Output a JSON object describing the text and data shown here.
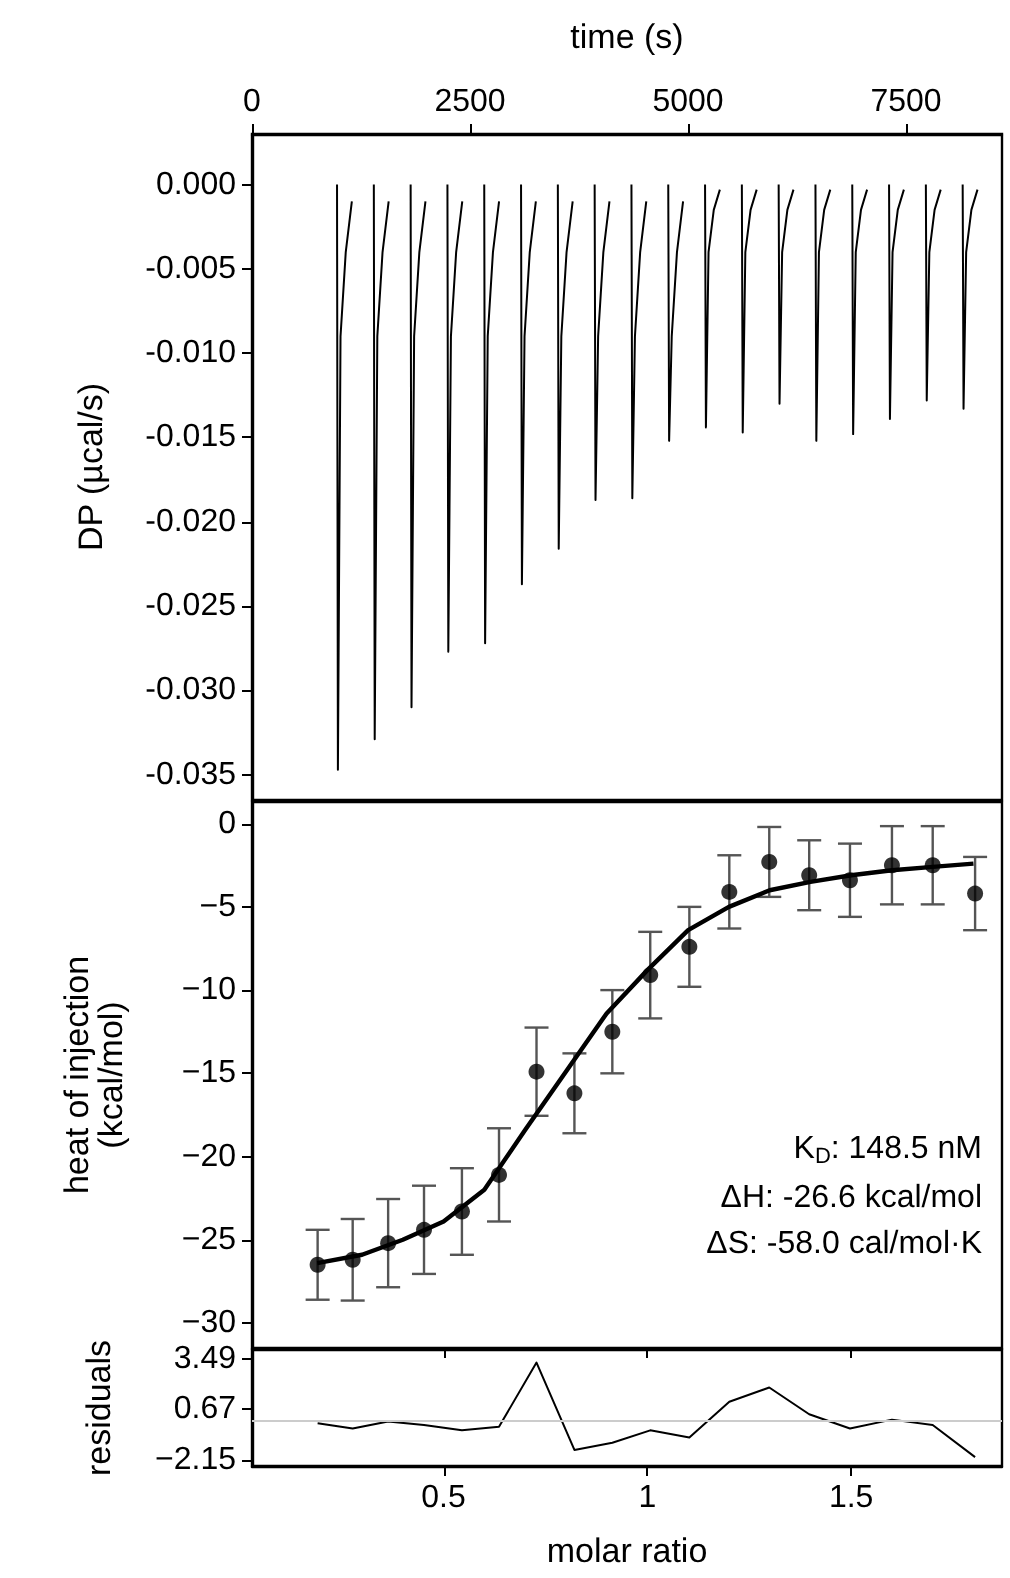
{
  "chart_data": [
    {
      "type": "line",
      "xlabel": "time (s)",
      "ylabel": "DP (µcal/s)",
      "xlim": [
        0,
        8600
      ],
      "xticks": [
        0,
        2500,
        5000,
        7500
      ],
      "ylim": [
        -0.0365,
        0.003
      ],
      "yticks": [
        {
          "value": 0,
          "label": "0.000"
        },
        {
          "value": -0.005,
          "label": "-0.005"
        },
        {
          "value": -0.01,
          "label": "-0.010"
        },
        {
          "value": -0.015,
          "label": "-0.015"
        },
        {
          "value": -0.02,
          "label": "-0.020"
        },
        {
          "value": -0.025,
          "label": "-0.025"
        },
        {
          "value": -0.03,
          "label": "-0.030"
        },
        {
          "value": -0.035,
          "label": "-0.035"
        }
      ],
      "series": [
        {
          "color": "#000000",
          "marker": "none",
          "x": [
            975,
            985,
            1015,
            1075,
            1145,
            1146,
            1397,
            1407,
            1437,
            1497,
            1567,
            1568,
            1819,
            1829,
            1859,
            1919,
            1989,
            1990,
            2241,
            2251,
            2281,
            2341,
            2411,
            2412,
            2663,
            2673,
            2703,
            2763,
            2833,
            2834,
            3085,
            3095,
            3125,
            3185,
            3255,
            3256,
            3507,
            3517,
            3547,
            3607,
            3677,
            3678,
            3929,
            3939,
            3969,
            4029,
            4099,
            4100,
            4351,
            4361,
            4391,
            4451,
            4521,
            4522,
            4773,
            4783,
            4813,
            4873,
            4943,
            4944,
            5195,
            5205,
            5235,
            5295,
            5365,
            5366,
            5617,
            5627,
            5657,
            5717,
            5787,
            5788,
            6039,
            6049,
            6079,
            6139,
            6209,
            6210,
            6461,
            6471,
            6501,
            6561,
            6631,
            6632,
            6883,
            6893,
            6923,
            6983,
            7053,
            7054,
            7305,
            7315,
            7345,
            7405,
            7475,
            7476,
            7727,
            7737,
            7767,
            7827,
            7897,
            7898,
            8149,
            8159,
            8189,
            8249,
            8319
          ],
          "values": [
            0,
            -0.0347,
            -0.009,
            -0.004,
            -0.001,
            null,
            0,
            -0.0329,
            -0.009,
            -0.004,
            -0.001,
            null,
            0,
            -0.031,
            -0.009,
            -0.004,
            -0.001,
            null,
            0,
            -0.0277,
            -0.009,
            -0.004,
            -0.001,
            null,
            0,
            -0.0272,
            -0.009,
            -0.004,
            -0.001,
            null,
            0,
            -0.0237,
            -0.009,
            -0.004,
            -0.001,
            null,
            0,
            -0.0216,
            -0.009,
            -0.004,
            -0.001,
            null,
            0,
            -0.0187,
            -0.009,
            -0.004,
            -0.001,
            null,
            0,
            -0.0186,
            -0.009,
            -0.004,
            -0.001,
            null,
            0,
            -0.0152,
            -0.009,
            -0.004,
            -0.001,
            null,
            0,
            -0.0144,
            -0.004,
            -0.0015,
            -0.0003,
            null,
            0,
            -0.0147,
            -0.004,
            -0.0015,
            -0.0003,
            null,
            0,
            -0.013,
            -0.004,
            -0.0015,
            -0.0003,
            null,
            0,
            -0.0152,
            -0.004,
            -0.0015,
            -0.0003,
            null,
            0,
            -0.0148,
            -0.004,
            -0.0015,
            -0.0003,
            null,
            0,
            -0.0139,
            -0.004,
            -0.0015,
            -0.0003,
            null,
            0,
            -0.0128,
            -0.004,
            -0.0015,
            -0.0003,
            null,
            0,
            -0.0133,
            -0.004,
            -0.0015,
            -0.0003
          ]
        }
      ]
    },
    {
      "type": "scatter",
      "ylabel": "heat of injection\n(kcal/mol)",
      "xlim": [
        0.03,
        1.87
      ],
      "xticks": [
        0.5,
        1.0,
        1.5
      ],
      "tick_labels": "y",
      "ylim": [
        -31.5,
        1.3
      ],
      "yticks": [
        0,
        {
          "value": -5,
          "label": "−5"
        },
        {
          "value": -10,
          "label": "−10"
        },
        {
          "value": -15,
          "label": "−15"
        },
        {
          "value": -20,
          "label": "−20"
        },
        {
          "value": -25,
          "label": "−25"
        },
        {
          "value": -30,
          "label": "−30"
        }
      ],
      "annotations": [
        "K$_{D}$: 148.5 nM",
        "ΔH: -26.6 kcal/mol",
        "ΔS: -58.0 cal/mol·K"
      ],
      "series": [
        {
          "type": "scatter",
          "color": "#000000",
          "marker": "circle",
          "x": [
            0.191,
            0.277,
            0.364,
            0.452,
            0.545,
            0.636,
            0.728,
            0.821,
            0.914,
            1.007,
            1.103,
            1.201,
            1.299,
            1.397,
            1.497,
            1.6,
            1.7,
            1.804
          ],
          "values": [
            -26.5,
            -26.2,
            -25.2,
            -24.4,
            -23.3,
            -21.1,
            -14.9,
            -16.2,
            -12.5,
            -9.1,
            -7.4,
            -4.1,
            -2.3,
            -3.1,
            -3.4,
            -2.5,
            -2.5,
            -4.2
          ],
          "errors": [
            2.1,
            2.45,
            2.65,
            2.65,
            2.6,
            2.8,
            2.65,
            2.4,
            2.5,
            2.6,
            2.4,
            2.2,
            2.1,
            2.1,
            2.2,
            2.35,
            2.35,
            2.2
          ]
        },
        {
          "type": "line",
          "color": "#000000",
          "marker": "none",
          "x": [
            0.19,
            0.3,
            0.4,
            0.5,
            0.6,
            0.7,
            0.8,
            0.9,
            1.0,
            1.1,
            1.2,
            1.3,
            1.4,
            1.5,
            1.6,
            1.7,
            1.8
          ],
          "values": [
            -26.4,
            -25.9,
            -25.0,
            -23.9,
            -22.0,
            -18.4,
            -14.9,
            -11.4,
            -8.8,
            -6.4,
            -5.0,
            -4.0,
            -3.5,
            -3.1,
            -2.8,
            -2.6,
            -2.4
          ]
        }
      ]
    },
    {
      "type": "line",
      "xlabel": "molar ratio",
      "ylabel": "residuals",
      "xlim": [
        0.03,
        1.87
      ],
      "xticks": [
        0.5,
        1.0,
        1.5
      ],
      "ylim": [
        -2.5,
        4.0
      ],
      "yticks": [
        {
          "value": -2.15,
          "label": "−2.15"
        },
        0.67,
        3.49
      ],
      "ref_lines": [
        {
          "axis": "y",
          "value": 0,
          "color": "#cccccc"
        }
      ],
      "series": [
        {
          "color": "#000000",
          "marker": "none",
          "x": [
            0.191,
            0.277,
            0.364,
            0.452,
            0.545,
            0.636,
            0.728,
            0.821,
            0.914,
            1.007,
            1.103,
            1.201,
            1.299,
            1.397,
            1.497,
            1.6,
            1.7,
            1.804
          ],
          "values": [
            -0.1,
            -0.4,
            0.0,
            -0.2,
            -0.5,
            -0.3,
            3.3,
            -1.6,
            -1.2,
            -0.5,
            -0.9,
            1.1,
            1.9,
            0.4,
            -0.4,
            0.1,
            -0.2,
            -2.0
          ]
        }
      ]
    }
  ]
}
